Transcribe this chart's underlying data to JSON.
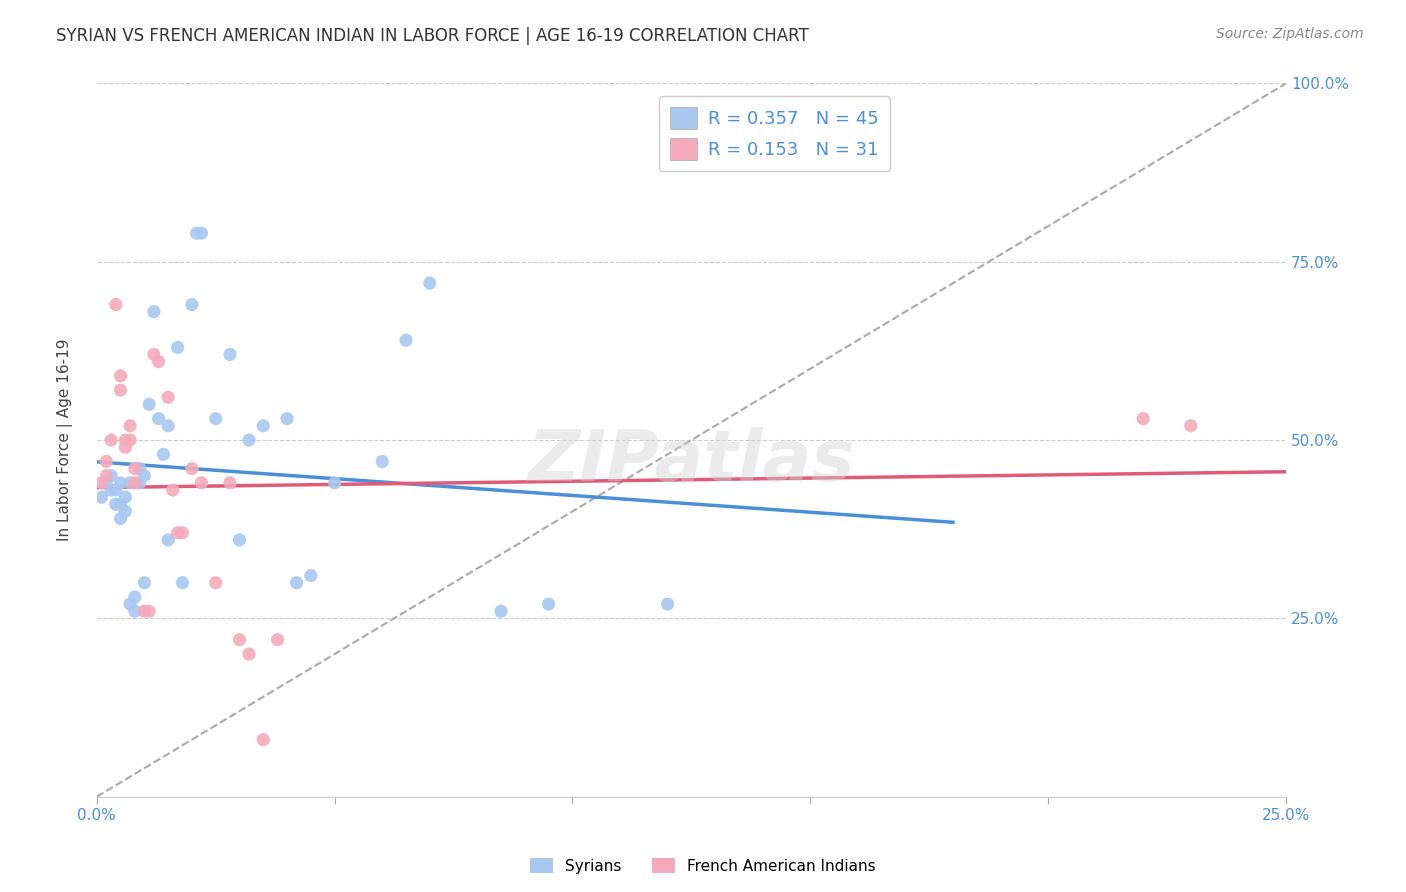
{
  "title": "SYRIAN VS FRENCH AMERICAN INDIAN IN LABOR FORCE | AGE 16-19 CORRELATION CHART",
  "source": "Source: ZipAtlas.com",
  "ylabel": "In Labor Force | Age 16-19",
  "xlim": [
    0.0,
    0.25
  ],
  "ylim": [
    0.0,
    1.0
  ],
  "xticks": [
    0.0,
    0.05,
    0.1,
    0.15,
    0.2,
    0.25
  ],
  "yticks": [
    0.0,
    0.25,
    0.5,
    0.75,
    1.0
  ],
  "xticklabels": [
    "0.0%",
    "",
    "",
    "",
    "",
    "25.0%"
  ],
  "yticklabels_right": [
    "",
    "25.0%",
    "50.0%",
    "75.0%",
    "100.0%"
  ],
  "blue_scatter_color": "#A8C8F0",
  "pink_scatter_color": "#F4AABB",
  "blue_line_color": "#4A90D9",
  "pink_line_color": "#E05A7A",
  "dashed_line_color": "#AAAAAA",
  "watermark": "ZIPatlas",
  "legend_r1": "R = 0.357",
  "legend_n1": "N = 45",
  "legend_r2": "R = 0.153",
  "legend_n2": "N = 31",
  "syrians_x": [
    0.001,
    0.002,
    0.003,
    0.003,
    0.004,
    0.004,
    0.005,
    0.005,
    0.005,
    0.006,
    0.006,
    0.007,
    0.007,
    0.008,
    0.008,
    0.009,
    0.009,
    0.01,
    0.01,
    0.011,
    0.012,
    0.013,
    0.014,
    0.015,
    0.015,
    0.017,
    0.018,
    0.02,
    0.021,
    0.022,
    0.025,
    0.028,
    0.03,
    0.032,
    0.035,
    0.04,
    0.042,
    0.045,
    0.05,
    0.06,
    0.065,
    0.07,
    0.085,
    0.095,
    0.12
  ],
  "syrians_y": [
    0.42,
    0.44,
    0.43,
    0.45,
    0.41,
    0.43,
    0.44,
    0.39,
    0.41,
    0.42,
    0.4,
    0.27,
    0.44,
    0.28,
    0.26,
    0.44,
    0.46,
    0.45,
    0.3,
    0.55,
    0.68,
    0.53,
    0.48,
    0.52,
    0.36,
    0.63,
    0.3,
    0.69,
    0.79,
    0.79,
    0.53,
    0.62,
    0.36,
    0.5,
    0.52,
    0.53,
    0.3,
    0.31,
    0.44,
    0.47,
    0.64,
    0.72,
    0.26,
    0.27,
    0.27
  ],
  "french_x": [
    0.001,
    0.002,
    0.002,
    0.003,
    0.004,
    0.005,
    0.005,
    0.006,
    0.006,
    0.007,
    0.007,
    0.008,
    0.008,
    0.01,
    0.011,
    0.012,
    0.013,
    0.015,
    0.016,
    0.017,
    0.018,
    0.02,
    0.022,
    0.025,
    0.028,
    0.03,
    0.032,
    0.035,
    0.038,
    0.22,
    0.23
  ],
  "french_y": [
    0.44,
    0.47,
    0.45,
    0.5,
    0.69,
    0.59,
    0.57,
    0.5,
    0.49,
    0.52,
    0.5,
    0.44,
    0.46,
    0.26,
    0.26,
    0.62,
    0.61,
    0.56,
    0.43,
    0.37,
    0.37,
    0.46,
    0.44,
    0.3,
    0.44,
    0.22,
    0.2,
    0.08,
    0.22,
    0.53,
    0.52
  ],
  "title_fontsize": 12,
  "axis_label_fontsize": 11,
  "tick_fontsize": 11,
  "legend_fontsize": 13,
  "source_fontsize": 10
}
